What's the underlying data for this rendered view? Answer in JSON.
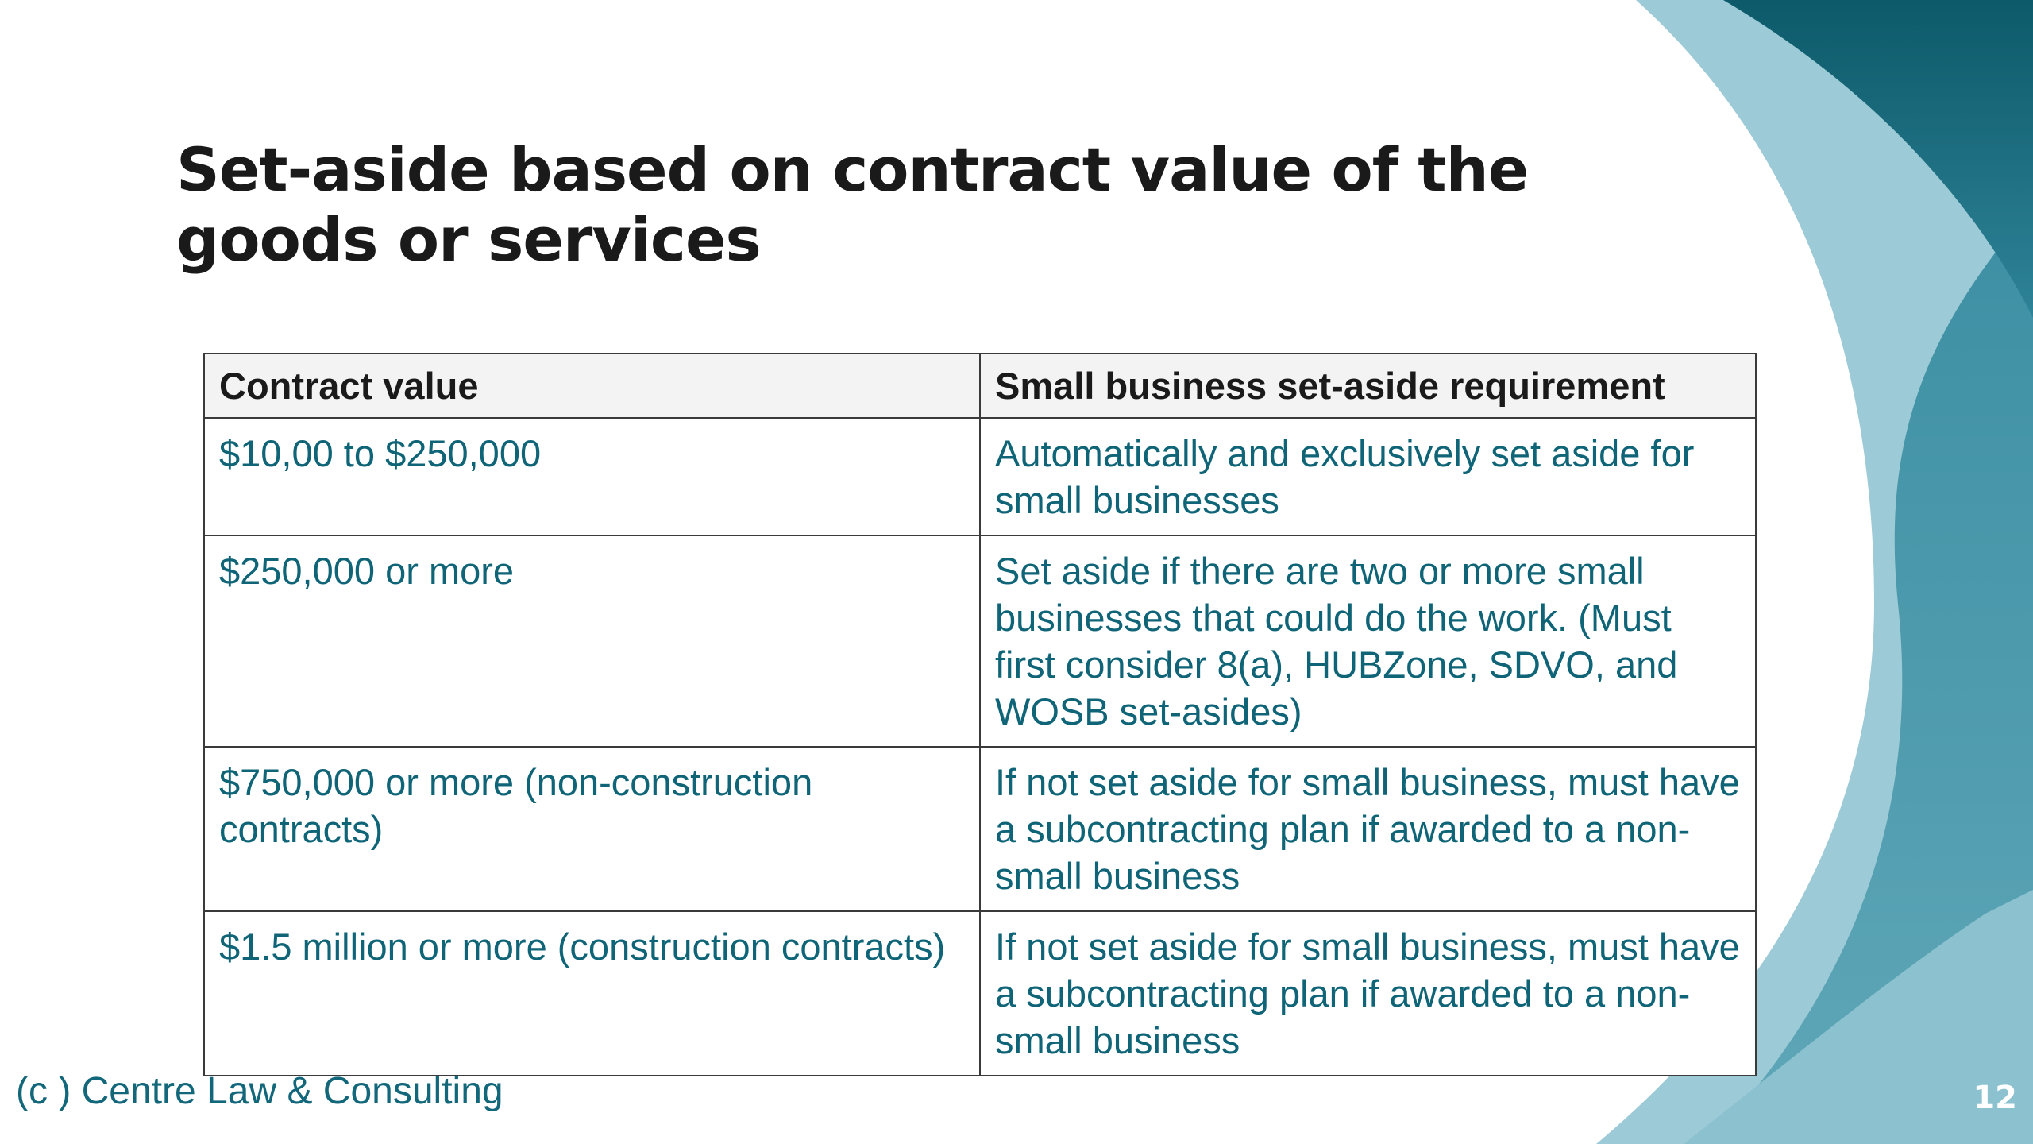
{
  "slide": {
    "title": "Set-aside based on contract value of the goods or services",
    "table": {
      "headers": [
        "Contract value",
        "Small business set-aside requirement"
      ],
      "rows": [
        [
          "$10,00 to $250,000",
          "Automatically and exclusively set aside for small businesses"
        ],
        [
          "$250,000 or more",
          "Set aside if there are two or more small businesses that could do the work. (Must first consider 8(a), HUBZone, SDVO, and WOSB set-asides)"
        ],
        [
          "$750,000 or more (non-construction contracts)",
          "If not set aside for small business, must have a subcontracting plan if awarded to a non-small business"
        ],
        [
          "$1.5 million or more (construction contracts)",
          "If not set aside for small business, must have a subcontracting plan if awarded to a non-small business"
        ]
      ]
    },
    "footer": "(c ) Centre Law & Consulting",
    "page_number": "12"
  },
  "colors": {
    "title_text": "#1a1a1a",
    "cell_text": "#0f6577",
    "header_background": "#f3f3f3",
    "border": "#3a3a3a",
    "teal_dark": "#0f5f6e",
    "teal_mid": "#4a9aac",
    "teal_light": "#9ccad6"
  }
}
